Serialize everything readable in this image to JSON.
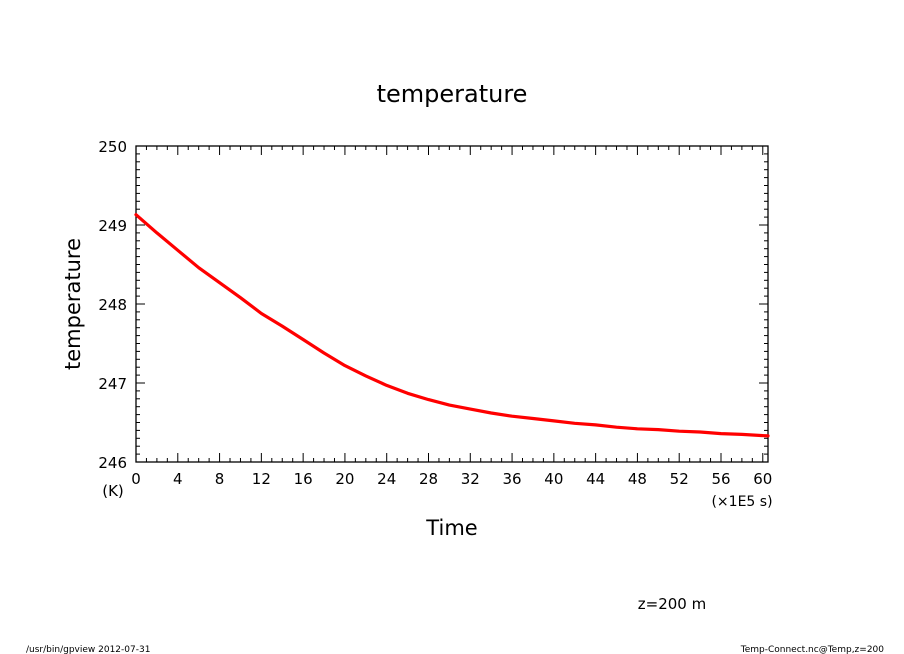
{
  "chart_data": {
    "type": "line",
    "title": "temperature",
    "xlabel": "Time",
    "x_unit": "(×1E5 s)",
    "ylabel": "temperature",
    "y_unit": "(K)",
    "xlim": [
      0,
      60.5
    ],
    "ylim": [
      246,
      250
    ],
    "x_ticks": [
      "0",
      "4",
      "8",
      "12",
      "16",
      "20",
      "24",
      "28",
      "32",
      "36",
      "40",
      "44",
      "48",
      "52",
      "56",
      "60"
    ],
    "y_ticks": [
      "246",
      "247",
      "248",
      "249",
      "250"
    ],
    "grid": false,
    "series": [
      {
        "color": "#ff0000",
        "x": [
          0,
          2,
          4,
          6,
          8,
          10,
          12,
          14,
          16,
          18,
          20,
          22,
          24,
          26,
          28,
          30,
          32,
          34,
          36,
          38,
          40,
          42,
          44,
          46,
          48,
          50,
          52,
          54,
          56,
          58,
          60.5
        ],
        "y": [
          249.13,
          248.9,
          248.68,
          248.46,
          248.27,
          248.08,
          247.88,
          247.72,
          247.55,
          247.38,
          247.22,
          247.09,
          246.97,
          246.87,
          246.79,
          246.72,
          246.67,
          246.62,
          246.58,
          246.55,
          246.52,
          246.49,
          246.47,
          246.44,
          246.42,
          246.41,
          246.39,
          246.38,
          246.36,
          246.35,
          246.33
        ]
      }
    ]
  },
  "annotation": "z=200 m",
  "footer_left": "/usr/bin/gpview   2012-07-31",
  "footer_right": "Temp-Connect.nc@Temp,z=200"
}
